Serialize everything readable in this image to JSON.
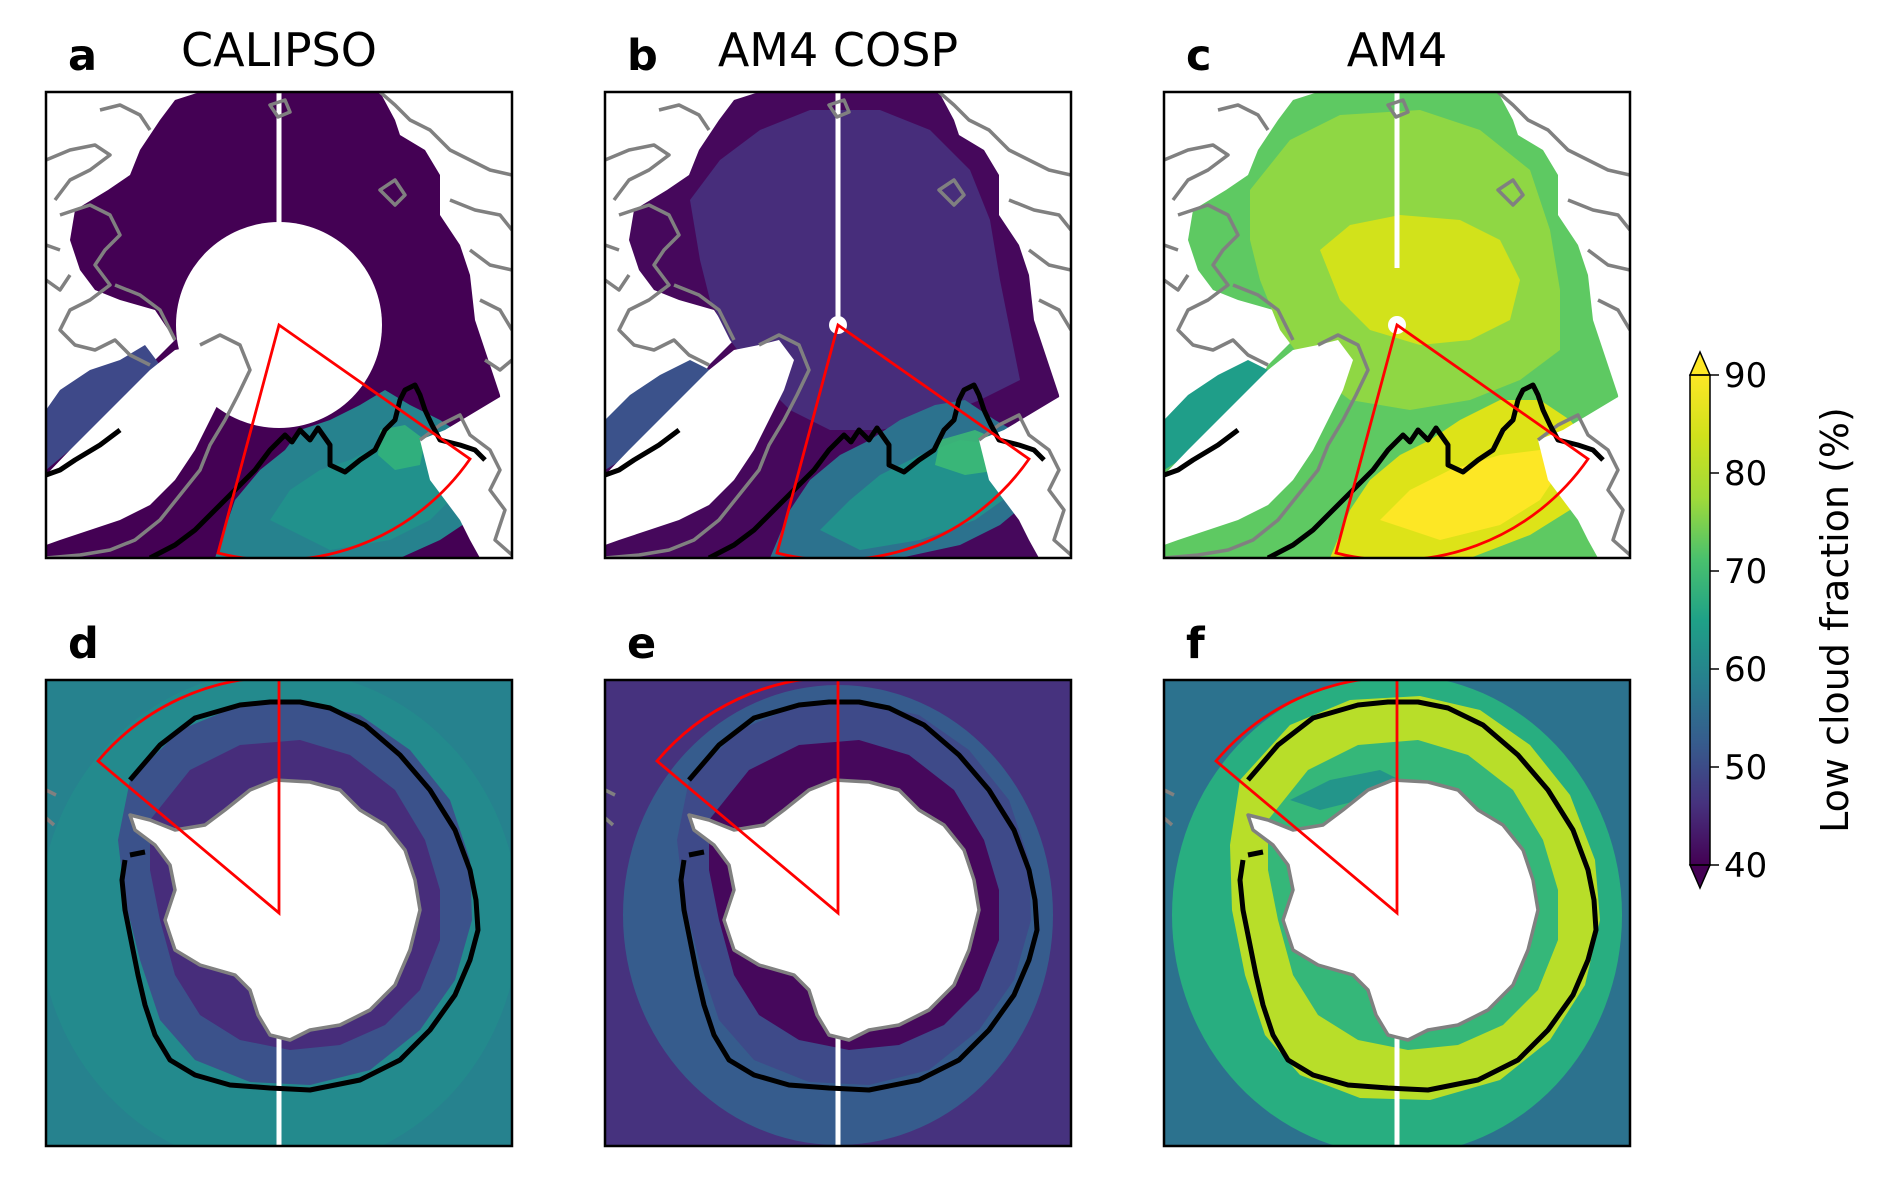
{
  "panels": [
    {
      "id": "a",
      "title": "CALIPSO",
      "hemisphere": "north",
      "base": "#46085c",
      "levels": [
        {
          "v": 55,
          "zone": "southwest"
        },
        {
          "v": 66,
          "zone": "sector_low"
        },
        {
          "v": 74,
          "zone": "sector_high"
        }
      ],
      "pole_gap": "large"
    },
    {
      "id": "b",
      "title": "AM4 COSP",
      "hemisphere": "north",
      "base": "#472d7b",
      "levels": [
        {
          "v": 50,
          "zone": "interior"
        },
        {
          "v": 60,
          "zone": "southwest"
        },
        {
          "v": 68,
          "zone": "sector_low"
        },
        {
          "v": 75,
          "zone": "sector_high"
        }
      ],
      "pole_gap": "small"
    },
    {
      "id": "c",
      "title": "AM4",
      "hemisphere": "north",
      "base": "#5ec962",
      "levels": [
        {
          "v": 82,
          "zone": "interior"
        },
        {
          "v": 88,
          "zone": "core"
        },
        {
          "v": 70,
          "zone": "southwest"
        },
        {
          "v": 86,
          "zone": "sector_high"
        }
      ],
      "pole_gap": "small"
    },
    {
      "id": "d",
      "title": "",
      "hemisphere": "south",
      "base": "#26828e",
      "levels": [
        {
          "v": 66,
          "zone": "ocean"
        },
        {
          "v": 52,
          "zone": "ring"
        },
        {
          "v": 46,
          "zone": "coast_band"
        }
      ]
    },
    {
      "id": "e",
      "title": "",
      "hemisphere": "south",
      "base": "#3b528b",
      "levels": [
        {
          "v": 58,
          "zone": "ocean"
        },
        {
          "v": 48,
          "zone": "ring"
        },
        {
          "v": 44,
          "zone": "coast_band"
        }
      ]
    },
    {
      "id": "f",
      "title": "",
      "hemisphere": "south",
      "base": "#2a9a8a",
      "levels": [
        {
          "v": 72,
          "zone": "ocean"
        },
        {
          "v": 87,
          "zone": "ring"
        },
        {
          "v": 68,
          "zone": "coast_band"
        }
      ]
    }
  ],
  "colorbar": {
    "label": "Low cloud fraction (%)",
    "min": 40,
    "max": 90,
    "ticks": [
      "40",
      "50",
      "60",
      "70",
      "80",
      "90"
    ],
    "extend": "both",
    "colormap": "viridis"
  },
  "colors": {
    "coastline": "#808080",
    "ice_edge": "#000000",
    "sector": "#ff0000",
    "land": "#ffffff"
  }
}
